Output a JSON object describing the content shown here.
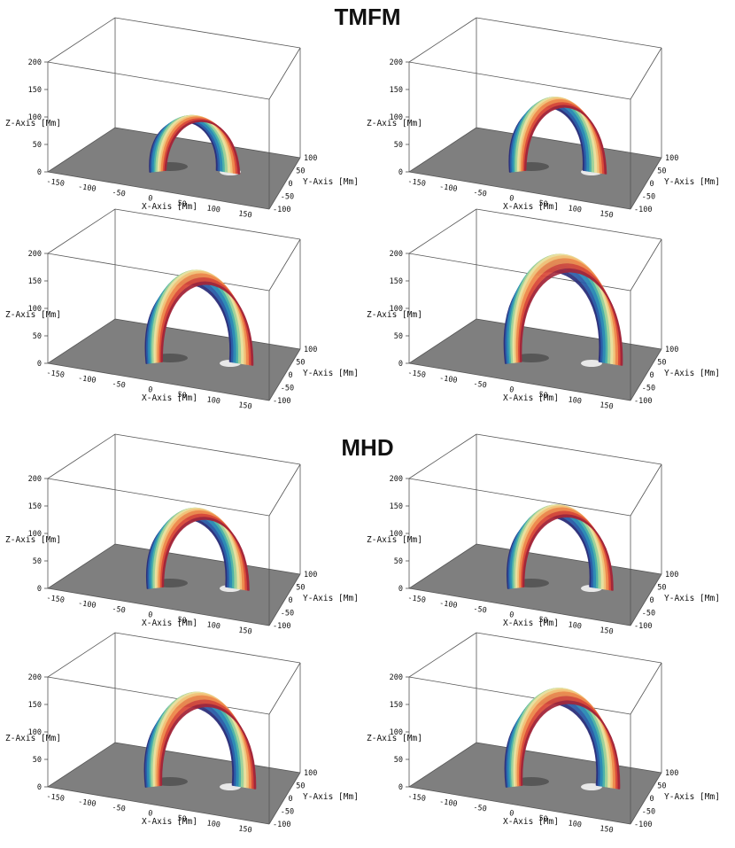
{
  "titles": {
    "top": "TMFM",
    "bottom": "MHD"
  },
  "axes": {
    "x_label": "X-Axis [Mm]",
    "y_label": "Y-Axis [Mm]",
    "z_label": "Z-Axis [Mm]",
    "x_ticks": [
      "-150",
      "-100",
      "-50",
      "0",
      "50",
      "100",
      "150"
    ],
    "y_ticks": [
      "100",
      "50",
      "0",
      "-50",
      "-100"
    ],
    "z_ticks": [
      "200",
      "150",
      "100",
      "50",
      "0"
    ]
  },
  "colors": {
    "rainbow": [
      "#2b2f7a",
      "#2b5da8",
      "#2e8bb5",
      "#4fb3a8",
      "#9fd39b",
      "#e8e0a0",
      "#f2c27a",
      "#ee8a4e",
      "#d94a3a",
      "#a3263a"
    ],
    "floor": "#7f7f7f",
    "box": "#555555"
  },
  "panels": [
    {
      "id": "tmfm-1",
      "group": "TMFM",
      "loop_height": 0.32,
      "spread": 0.35
    },
    {
      "id": "tmfm-2",
      "group": "TMFM",
      "loop_height": 0.55,
      "spread": 0.55
    },
    {
      "id": "tmfm-3",
      "group": "TMFM",
      "loop_height": 0.78,
      "spread": 0.85
    },
    {
      "id": "tmfm-4",
      "group": "TMFM",
      "loop_height": 0.98,
      "spread": 1.15
    },
    {
      "id": "mhd-1",
      "group": "MHD",
      "loop_height": 0.62,
      "spread": 0.7
    },
    {
      "id": "mhd-2",
      "group": "MHD",
      "loop_height": 0.66,
      "spread": 0.8
    },
    {
      "id": "mhd-3",
      "group": "MHD",
      "loop_height": 0.8,
      "spread": 0.95
    },
    {
      "id": "mhd-4",
      "group": "MHD",
      "loop_height": 0.85,
      "spread": 1.05
    }
  ]
}
